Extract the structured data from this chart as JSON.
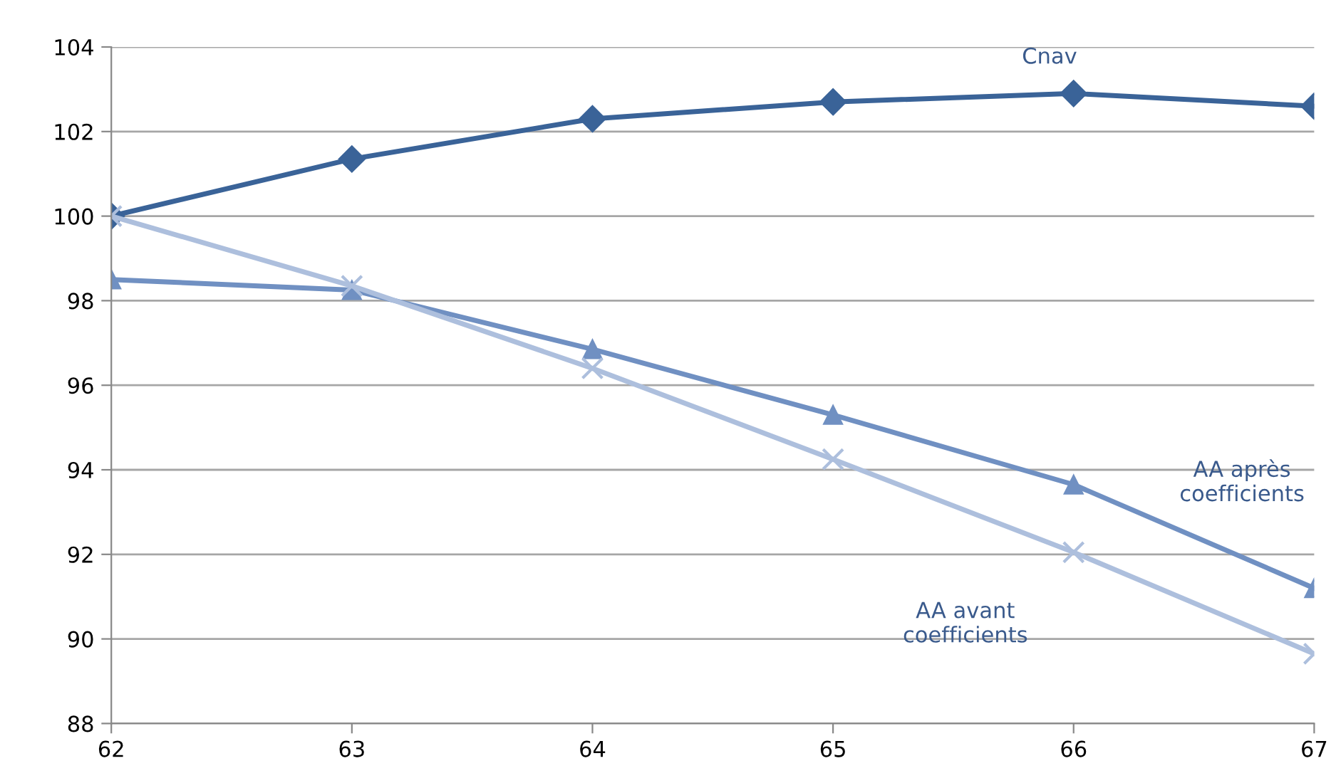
{
  "chart_data": {
    "type": "line",
    "x": [
      62,
      63,
      64,
      65,
      66,
      67
    ],
    "series": [
      {
        "name": "Cnav",
        "color": "#3a6398",
        "marker": "diamond",
        "values": [
          100,
          101.35,
          102.3,
          102.7,
          102.9,
          102.6
        ]
      },
      {
        "name": "AA après\ncoefficients",
        "color": "#7090c2",
        "marker": "triangle",
        "values": [
          98.5,
          98.25,
          96.85,
          95.3,
          93.65,
          91.2
        ]
      },
      {
        "name": "AA avant\ncoefficients",
        "color": "#adbfdd",
        "marker": "cross",
        "values": [
          100,
          98.35,
          96.4,
          94.25,
          92.05,
          89.65
        ]
      }
    ],
    "xlim": [
      62,
      67
    ],
    "xticks": [
      62,
      63,
      64,
      65,
      66,
      67
    ],
    "ylim": [
      88,
      104
    ],
    "yticks": [
      88,
      90,
      92,
      94,
      96,
      98,
      100,
      102,
      104
    ],
    "grid": "y",
    "legend": false,
    "line_style": "solid"
  }
}
